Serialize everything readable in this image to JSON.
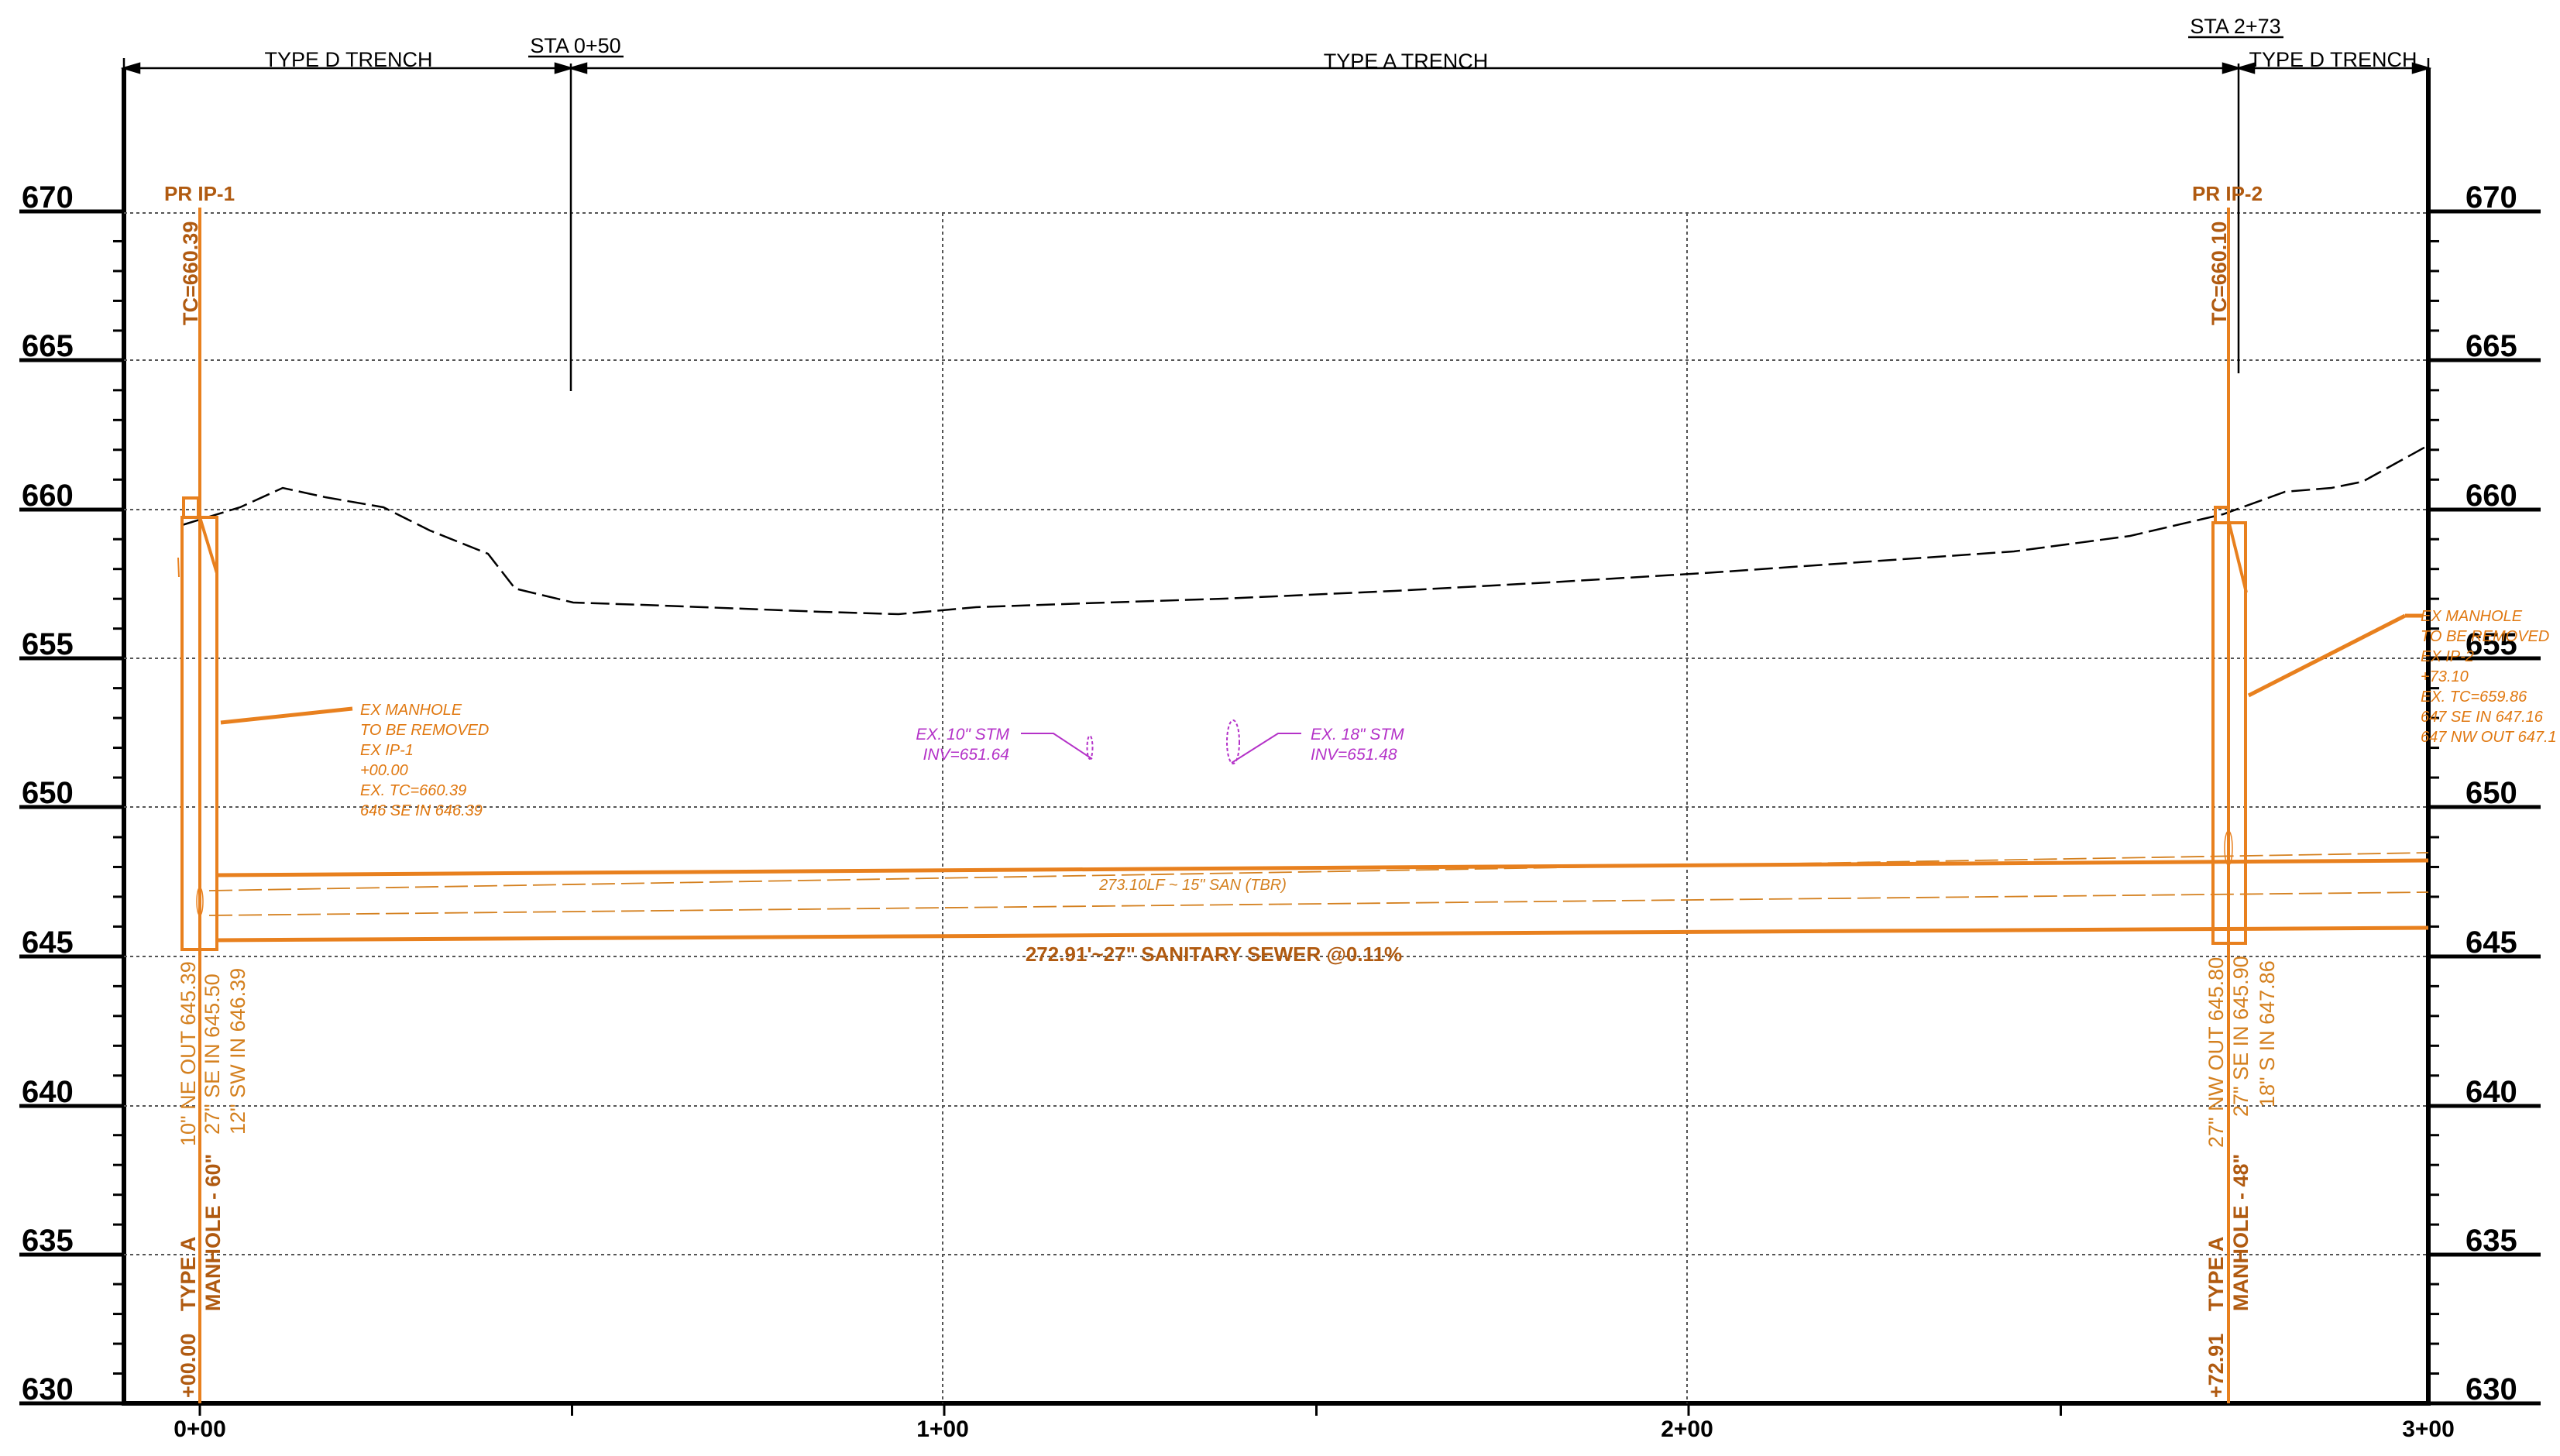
{
  "elevations": [
    "670",
    "665",
    "660",
    "655",
    "650",
    "645",
    "640",
    "635",
    "630"
  ],
  "stations": [
    "0+00",
    "1+00",
    "2+00",
    "3+00"
  ],
  "trench": {
    "left_label": "TYPE D TRENCH",
    "middle_label": "TYPE A TRENCH",
    "right_label": "TYPE D TRENCH",
    "sta_left": "STA 0+50",
    "sta_right": "STA 2+73"
  },
  "manhole_left": {
    "name": "PR IP-1",
    "tc": "TC=660.39",
    "inverts": [
      "10\" NE OUT 645.39",
      "27\" SE IN 645.50",
      "12\" SW IN 646.39"
    ],
    "type_label": "TYPE A",
    "size_label": "MANHOLE - 60\"",
    "station": "+00.00"
  },
  "manhole_right": {
    "name": "PR IP-2",
    "tc": "TC=660.10",
    "inverts": [
      "27\" NW OUT 645.80",
      "27\" SE IN 645.90",
      "18\" S IN 647.86"
    ],
    "type_label": "TYPE A",
    "size_label": "MANHOLE - 48\"",
    "station": "+72.91"
  },
  "callout_left": [
    "EX MANHOLE",
    "TO BE REMOVED",
    "EX IP-1",
    "+00.00",
    "EX. TC=660.39",
    "646 SE IN 646.39"
  ],
  "callout_right": [
    "EX MANHOLE",
    "TO BE REMOVED",
    "EX IP-2",
    "+73.10",
    "EX. TC=659.86",
    "647 SE IN 647.16",
    "647 NW OUT 647.1"
  ],
  "storm_left": [
    "EX. 10\" STM",
    "INV=651.64"
  ],
  "storm_right": [
    "EX. 18\" STM",
    "INV=651.48"
  ],
  "pipe_new_label": "272.91'~27\" SANITARY SEWER @0.11%",
  "pipe_old_label": "273.10LF ~ 15\" SAN (TBR)",
  "colors": {
    "pipe_orange": "#e8801e",
    "label_brown": "#b05a10",
    "storm_purple": "#b432c8",
    "grid": "#000000"
  }
}
